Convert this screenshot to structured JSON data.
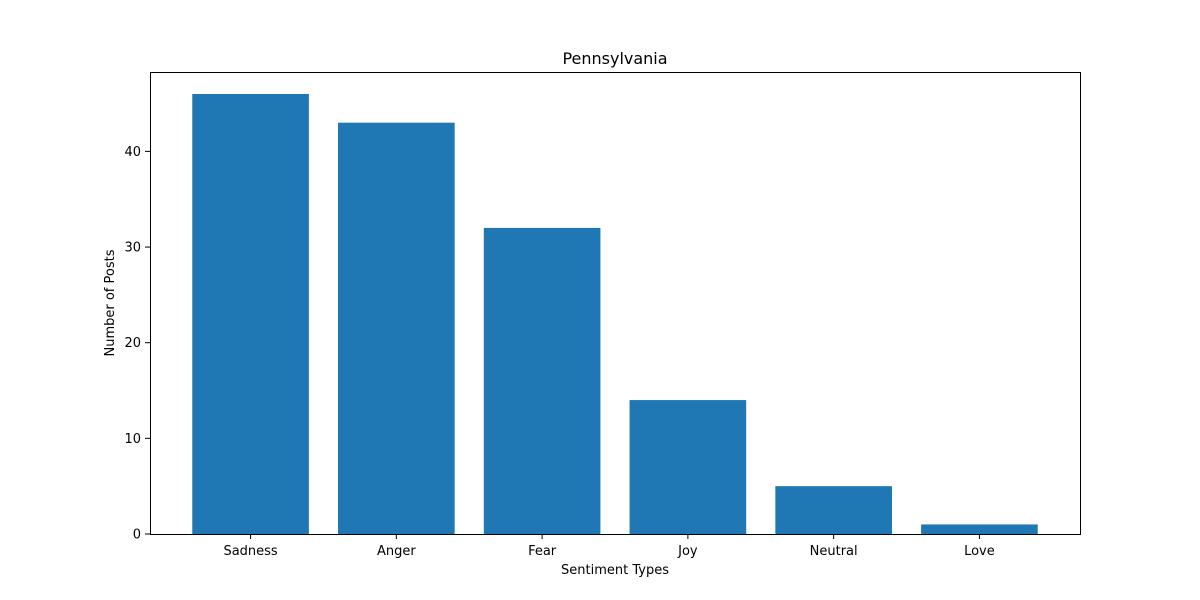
{
  "chart_data": {
    "type": "bar",
    "title": "Pennsylvania",
    "xlabel": "Sentiment Types",
    "ylabel": "Number of Posts",
    "categories": [
      "Sadness",
      "Anger",
      "Fear",
      "Joy",
      "Neutral",
      "Love"
    ],
    "values": [
      46,
      43,
      32,
      14,
      5,
      1
    ],
    "ylim": [
      0,
      48.3
    ],
    "yticks": [
      0,
      10,
      20,
      30,
      40
    ],
    "ytick_labels": [
      "0",
      "10",
      "20",
      "30",
      "40"
    ],
    "bar_color": "#1f77b4",
    "grid": false,
    "legend": "none"
  }
}
